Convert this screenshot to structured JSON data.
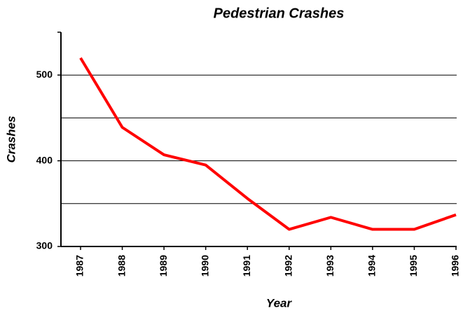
{
  "chart_data": {
    "type": "line",
    "title": "Pedestrian Crashes",
    "x_label": "Year",
    "y_label": "Crashes",
    "categories": [
      "1987",
      "1988",
      "1989",
      "1990",
      "1991",
      "1992",
      "1993",
      "1994",
      "1995",
      "1996"
    ],
    "series": [
      {
        "name": "Crashes",
        "color": "#ff0000",
        "values": [
          520,
          439,
          407,
          395,
          356,
          320,
          334,
          320,
          320,
          337
        ]
      }
    ],
    "ylim": [
      300,
      550
    ],
    "yticks": [
      300,
      400,
      500
    ],
    "yminor_grid": [
      350,
      450
    ],
    "grid": true
  }
}
